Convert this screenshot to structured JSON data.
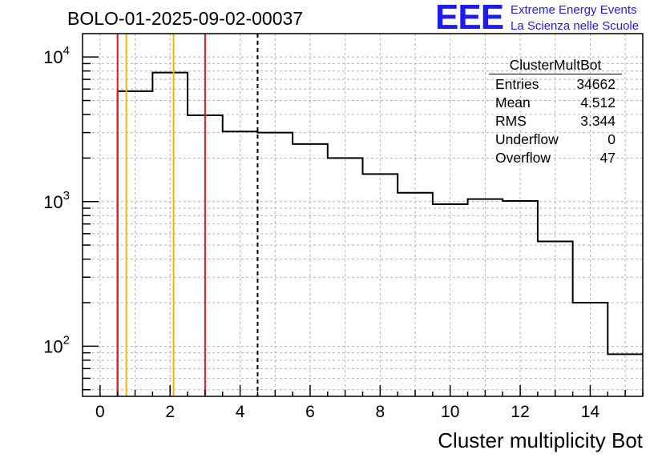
{
  "header": {
    "run_title": "BOLO-01-2025-09-02-00037",
    "logo_text": "EEE",
    "logo_line1": "Extreme Energy Events",
    "logo_line2": "La Scienza nelle Scuole"
  },
  "stats_box": {
    "name": "ClusterMultBot",
    "rows": [
      {
        "label": "Entries",
        "value": "34662"
      },
      {
        "label": "Mean",
        "value": "4.512"
      },
      {
        "label": "RMS",
        "value": "3.344"
      },
      {
        "label": "Underflow",
        "value": "0"
      },
      {
        "label": "Overflow",
        "value": "47"
      }
    ]
  },
  "colors": {
    "red_line": "#e8141e",
    "orange_line": "#f5b400",
    "histogram": "#000000",
    "grid": "#b4b4b4",
    "logo": "#1c1cf0"
  },
  "chart_data": {
    "type": "histogram",
    "title": "BOLO-01-2025-09-02-00037",
    "xlabel": "Cluster multiplicity Bot",
    "ylabel": "",
    "y_scale": "log",
    "xlim": [
      -0.5,
      15.5
    ],
    "ylim": [
      45,
      14500
    ],
    "bin_edges": [
      0.5,
      1.5,
      2.5,
      3.5,
      4.5,
      5.5,
      6.5,
      7.5,
      8.5,
      9.5,
      10.5,
      11.5,
      12.5,
      13.5,
      14.5,
      15.5
    ],
    "counts": [
      5800,
      7800,
      3950,
      3050,
      3000,
      2500,
      2000,
      1550,
      1150,
      960,
      1040,
      1010,
      530,
      200,
      88
    ],
    "x_ticks": [
      0,
      2,
      4,
      6,
      8,
      10,
      12,
      14
    ],
    "x_tick_labels": [
      "0",
      "2",
      "4",
      "6",
      "8",
      "10",
      "12",
      "14"
    ],
    "y_ticks": [
      100,
      1000,
      10000
    ],
    "y_tick_labels": [
      {
        "base": "10",
        "exp": "2"
      },
      {
        "base": "10",
        "exp": "3"
      },
      {
        "base": "10",
        "exp": "4"
      }
    ],
    "grid": true,
    "vertical_lines": [
      {
        "x": 0.5,
        "color": "red",
        "style": "solid"
      },
      {
        "x": 0.75,
        "color": "orange",
        "style": "solid"
      },
      {
        "x": 2.1,
        "color": "orange",
        "style": "solid"
      },
      {
        "x": 3.0,
        "color": "red",
        "style": "solid"
      },
      {
        "x": 4.5,
        "color": "black",
        "style": "dashed"
      }
    ]
  }
}
